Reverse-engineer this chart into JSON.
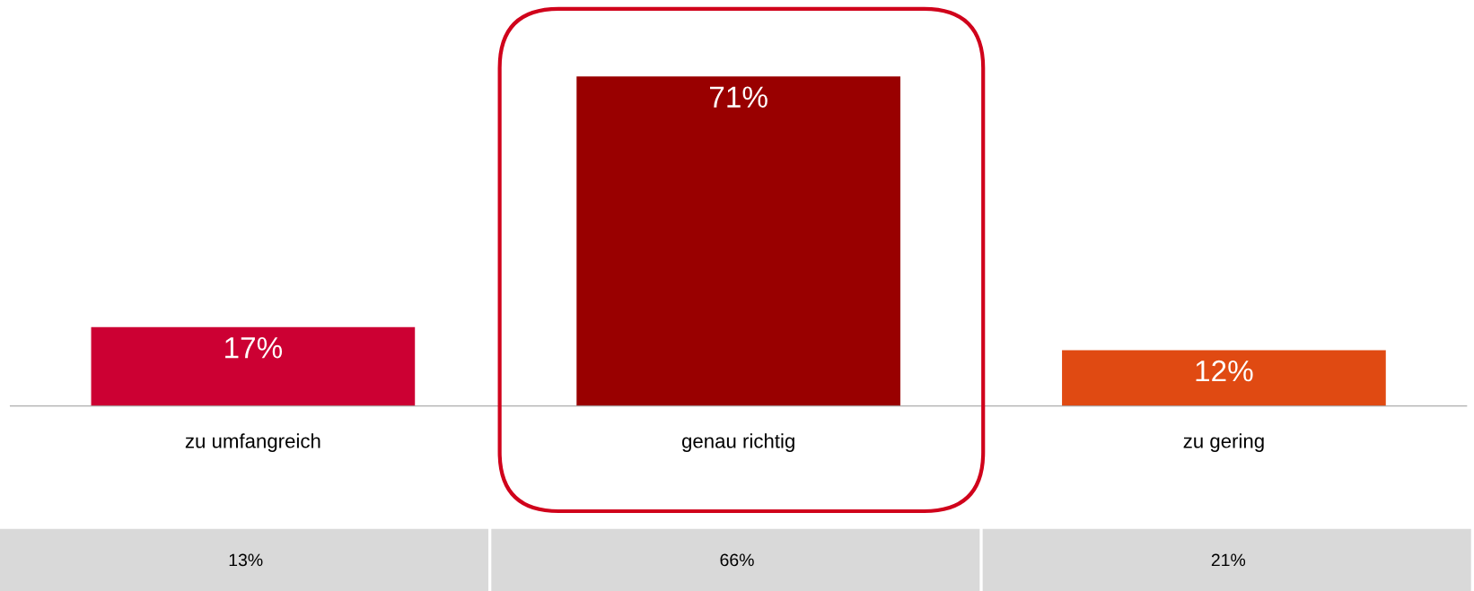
{
  "chart_data": {
    "type": "bar",
    "categories": [
      "zu umfangreich",
      "genau richtig",
      "zu gering"
    ],
    "values": [
      17,
      71,
      12
    ],
    "colors": [
      "#cc0033",
      "#990000",
      "#e04a12"
    ],
    "value_labels": [
      "17%",
      "71%",
      "12%"
    ],
    "tick_labels": "x",
    "annotations": [
      "13%",
      "66%",
      "21%"
    ]
  }
}
